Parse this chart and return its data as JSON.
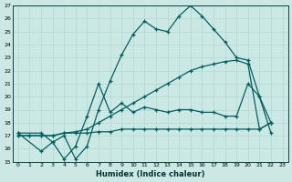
{
  "xlabel": "Humidex (Indice chaleur)",
  "bg_color": "#cce8e4",
  "grid_color": "#b0d8d4",
  "line_color": "#006060",
  "xlim": [
    -0.5,
    23.5
  ],
  "ylim": [
    15,
    27
  ],
  "xticks": [
    0,
    1,
    2,
    3,
    4,
    5,
    6,
    7,
    8,
    9,
    10,
    11,
    12,
    13,
    14,
    15,
    16,
    17,
    18,
    19,
    20,
    21,
    22,
    23
  ],
  "yticks": [
    15,
    16,
    17,
    18,
    19,
    20,
    21,
    22,
    23,
    24,
    25,
    26,
    27
  ],
  "lines": [
    {
      "x": [
        0,
        1,
        2,
        3,
        4,
        5,
        6,
        7,
        8,
        9,
        10,
        11,
        12,
        13,
        14,
        15,
        16,
        17,
        18,
        19,
        20,
        21,
        22
      ],
      "y": [
        17.0,
        17.0,
        17.0,
        17.0,
        17.2,
        17.2,
        17.2,
        17.3,
        17.3,
        17.5,
        17.5,
        17.5,
        17.5,
        17.5,
        17.5,
        17.5,
        17.5,
        17.5,
        17.5,
        17.5,
        17.5,
        17.5,
        18.0
      ]
    },
    {
      "x": [
        0,
        1,
        2,
        3,
        4,
        5,
        6,
        7,
        8,
        9,
        10,
        11,
        12,
        13,
        14,
        15,
        16,
        17,
        18,
        19,
        20,
        21,
        22
      ],
      "y": [
        17.0,
        17.0,
        17.0,
        17.0,
        17.2,
        17.3,
        17.5,
        18.0,
        18.5,
        19.0,
        19.5,
        20.0,
        20.5,
        21.0,
        21.5,
        22.0,
        22.3,
        22.5,
        22.7,
        22.8,
        22.5,
        17.5,
        18.0
      ]
    },
    {
      "x": [
        0,
        2,
        3,
        4,
        5,
        6,
        7,
        8,
        9,
        10,
        11,
        12,
        13,
        14,
        15,
        16,
        17,
        18,
        19,
        20,
        21,
        22
      ],
      "y": [
        17.2,
        15.8,
        16.5,
        15.2,
        16.2,
        18.5,
        21.0,
        18.8,
        19.5,
        18.8,
        19.2,
        19.0,
        18.8,
        19.0,
        19.0,
        18.8,
        18.8,
        18.5,
        18.5,
        21.0,
        20.0,
        18.0
      ]
    },
    {
      "x": [
        0,
        2,
        3,
        4,
        5,
        6,
        7,
        8,
        9,
        10,
        11,
        12,
        13,
        14,
        15,
        16,
        17,
        18,
        19,
        20,
        21,
        22
      ],
      "y": [
        17.2,
        17.2,
        16.5,
        17.0,
        15.2,
        16.2,
        19.0,
        21.2,
        23.2,
        24.8,
        25.8,
        25.2,
        25.0,
        26.2,
        27.0,
        26.2,
        25.2,
        24.2,
        23.0,
        22.8,
        20.0,
        17.2
      ]
    }
  ]
}
